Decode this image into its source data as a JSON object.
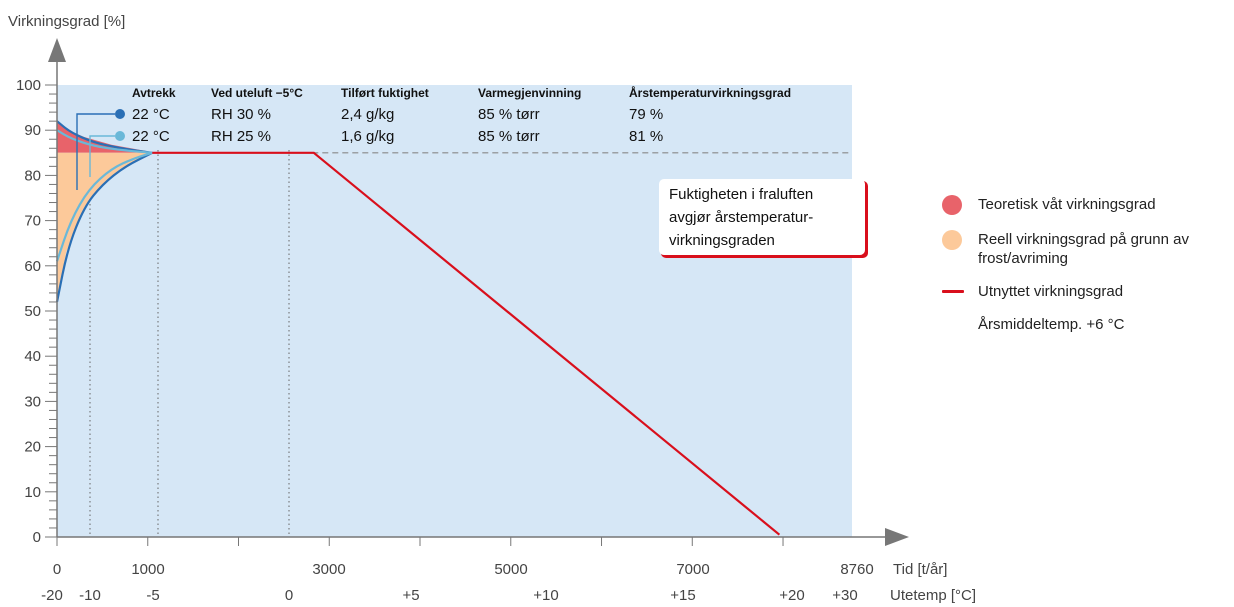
{
  "chart_data": {
    "type": "area",
    "ylabel": "Virkningsgrad [%]",
    "xlabel": "Tid [t/år]",
    "x2label": "Utetemp [°C]",
    "ylim": [
      0,
      100
    ],
    "xlim": [
      0,
      8760
    ],
    "y_ticks": [
      "0",
      "10",
      "20",
      "30",
      "40",
      "50",
      "60",
      "70",
      "80",
      "90",
      "100"
    ],
    "x_ticks": [
      "0",
      "1000",
      "3000",
      "5000",
      "7000",
      "8760"
    ],
    "x2_ticks": [
      "-20",
      "-10",
      "-5",
      "0",
      "+5",
      "+10",
      "+15",
      "+20",
      "+30"
    ],
    "reference_line": {
      "y": 85
    },
    "series": [
      {
        "name": "Teoretisk våt virkningsgrad",
        "type": "area",
        "color": "#e8636a",
        "points": [
          [
            0,
            92
          ],
          [
            100,
            90.2
          ],
          [
            300,
            88.5
          ],
          [
            600,
            86.8
          ],
          [
            1000,
            85.3
          ],
          [
            1050,
            85
          ]
        ]
      },
      {
        "name": "Reell virkningsgrad på grunn av frost/avriming",
        "type": "area",
        "color": "#fcc99a",
        "points": [
          [
            0,
            52
          ],
          [
            100,
            63
          ],
          [
            300,
            73
          ],
          [
            500,
            78
          ],
          [
            700,
            81.5
          ],
          [
            1000,
            84.5
          ],
          [
            1050,
            85
          ]
        ]
      },
      {
        "name": "Utnyttet virkningsgrad",
        "type": "line",
        "color": "#d90f1c",
        "points": [
          [
            1050,
            85
          ],
          [
            2830,
            85
          ],
          [
            7960,
            0.5
          ]
        ]
      }
    ],
    "curves": [
      {
        "color": "#2a6fb5",
        "points": [
          [
            0,
            92
          ],
          [
            150,
            89.5
          ],
          [
            400,
            87.3
          ],
          [
            700,
            86
          ],
          [
            1050,
            85
          ]
        ]
      },
      {
        "color": "#2a6fb5",
        "points": [
          [
            0,
            52
          ],
          [
            120,
            64
          ],
          [
            300,
            73
          ],
          [
            500,
            78
          ],
          [
            750,
            82
          ],
          [
            1050,
            85
          ]
        ]
      },
      {
        "color": "#6ab8d8",
        "points": [
          [
            0,
            90
          ],
          [
            150,
            88.2
          ],
          [
            400,
            86.5
          ],
          [
            700,
            85.6
          ],
          [
            1050,
            85
          ]
        ]
      },
      {
        "color": "#6ab8d8",
        "points": [
          [
            0,
            61
          ],
          [
            150,
            70
          ],
          [
            350,
            77
          ],
          [
            600,
            81.5
          ],
          [
            850,
            83.8
          ],
          [
            1050,
            85
          ]
        ]
      }
    ],
    "table": {
      "headers": [
        "Avtrekk",
        "Ved uteluft −5°C",
        "Tilført fuktighet",
        "Varmegjenvinning",
        "Årstemperaturvirkningsgrad"
      ],
      "rows": [
        {
          "marker_color": "#2a6fb5",
          "cells": [
            "22 °C",
            "RH 30 %",
            "2,4 g/kg",
            "85 % tørr",
            "79 %"
          ]
        },
        {
          "marker_color": "#6ab8d8",
          "cells": [
            "22 °C",
            "RH 25 %",
            "1,6 g/kg",
            "85 % tørr",
            "81 %"
          ]
        }
      ]
    },
    "annotation": [
      "Fuktigheten i fraluften",
      "avgjør årstemperatur-",
      "virkningsgraden"
    ]
  },
  "legend": {
    "items": [
      {
        "label": "Teoretisk våt virkningsgrad",
        "color": "#e8636a"
      },
      {
        "label": "Reell virkningsgrad på grunn av frost/avriming",
        "color": "#fcc99a"
      },
      {
        "label": "Utnyttet virkningsgrad",
        "color": "#d90f1c"
      }
    ],
    "note": "Årsmiddeltemp. +6 °C"
  }
}
